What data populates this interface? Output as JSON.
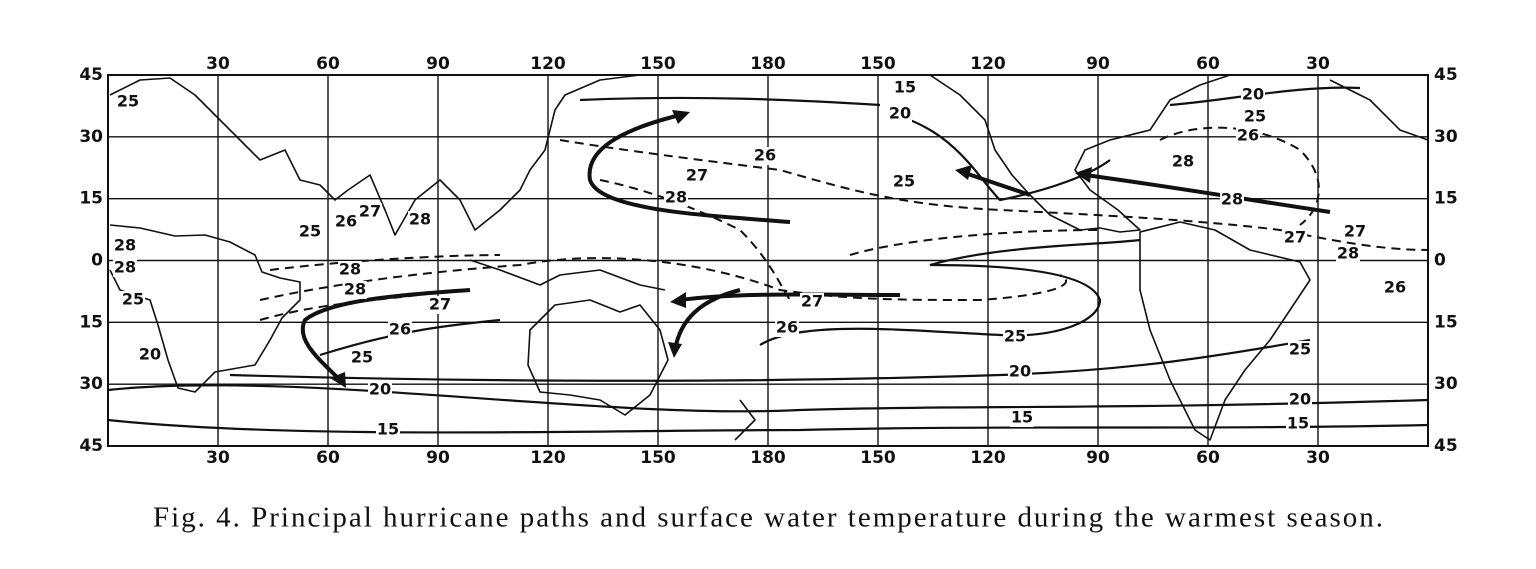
{
  "map": {
    "top_longitude_labels": [
      30,
      60,
      90,
      120,
      150,
      180,
      150,
      120,
      90,
      60,
      30
    ],
    "bottom_longitude_labels": [
      30,
      60,
      90,
      120,
      150,
      180,
      150,
      120,
      90,
      60,
      30
    ],
    "left_latitude_labels": [
      45,
      30,
      15,
      0,
      15,
      30,
      45
    ],
    "right_latitude_labels": [
      45,
      30,
      15,
      0,
      15,
      30,
      45
    ],
    "isotherm_labels": [
      25,
      20,
      25,
      28,
      28,
      25,
      26,
      27,
      28,
      28,
      28,
      27,
      26,
      25,
      20,
      15,
      27,
      28,
      26,
      15,
      20,
      25,
      27,
      26,
      25,
      20,
      15,
      28,
      20,
      25,
      26,
      28,
      27,
      27,
      28,
      26,
      25,
      20,
      15
    ]
  },
  "caption": "Fig. 4. Principal hurricane paths and surface water temperature during the warmest season."
}
